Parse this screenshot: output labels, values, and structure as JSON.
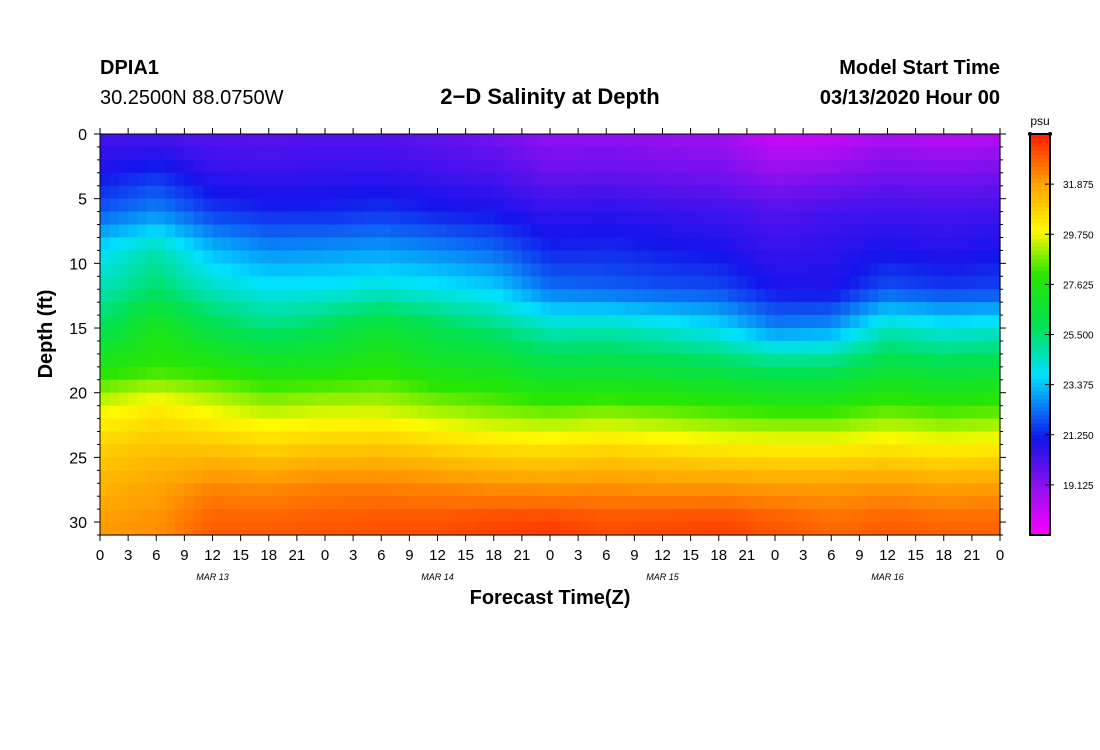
{
  "header": {
    "station": "DPIA1",
    "coords": "30.2500N 88.0750W",
    "title": "2−D Salinity at Depth",
    "start_label": "Model Start Time",
    "start_value": "03/13/2020 Hour 00"
  },
  "chart_data": {
    "type": "heatmap",
    "title": "2−D Salinity at Depth",
    "xlabel": "Forecast Time(Z)",
    "ylabel": "Depth (ft)",
    "xlim": [
      0,
      96
    ],
    "ylim": [
      31,
      0
    ],
    "x_tick_labels": [
      "0",
      "3",
      "6",
      "9",
      "12",
      "15",
      "18",
      "21",
      "0",
      "3",
      "6",
      "9",
      "12",
      "15",
      "18",
      "21",
      "0",
      "3",
      "6",
      "9",
      "12",
      "15",
      "18",
      "21",
      "0",
      "3",
      "6",
      "9",
      "12",
      "15",
      "18",
      "21",
      "0"
    ],
    "y_ticks": [
      0,
      5,
      10,
      15,
      20,
      25,
      30
    ],
    "date_labels": [
      {
        "label": "MAR 13",
        "hour": 12
      },
      {
        "label": "MAR 14",
        "hour": 36
      },
      {
        "label": "MAR 15",
        "hour": 60
      },
      {
        "label": "MAR 16",
        "hour": 84
      }
    ],
    "colorbar": {
      "unit": "psu",
      "min": 17.0,
      "max": 34.0,
      "ticks": [
        19.125,
        21.25,
        23.375,
        25.5,
        27.625,
        29.75,
        31.875
      ],
      "tick_labels": [
        "19.125",
        "21.250",
        "23.375",
        "25.500",
        "27.625",
        "29.750",
        "31.875"
      ]
    },
    "field": {
      "hours": [
        0,
        6,
        12,
        18,
        24,
        30,
        36,
        42,
        48,
        54,
        60,
        66,
        72,
        78,
        84,
        90,
        96
      ],
      "depths": [
        0,
        3,
        6,
        9,
        12,
        15,
        18,
        21,
        24,
        27,
        30
      ],
      "salinity": [
        [
          20.2,
          20.2,
          20.0,
          19.9,
          20.0,
          20.0,
          19.8,
          19.5,
          19.0,
          19.0,
          18.9,
          18.8,
          18.0,
          18.1,
          18.6,
          18.3,
          18.4
        ],
        [
          21.0,
          21.4,
          20.6,
          20.5,
          20.6,
          20.6,
          20.4,
          20.2,
          19.7,
          19.8,
          19.6,
          19.5,
          19.0,
          19.2,
          19.5,
          19.4,
          19.5
        ],
        [
          22.0,
          22.6,
          21.6,
          21.3,
          21.3,
          21.5,
          21.2,
          21.0,
          20.6,
          20.7,
          20.5,
          20.4,
          20.1,
          20.3,
          20.4,
          20.3,
          20.4
        ],
        [
          23.8,
          24.8,
          23.3,
          22.7,
          22.8,
          22.9,
          22.6,
          22.2,
          21.3,
          21.4,
          21.2,
          21.0,
          20.5,
          20.7,
          21.0,
          20.8,
          21.0
        ],
        [
          24.7,
          25.6,
          24.5,
          24.0,
          24.0,
          24.3,
          24.0,
          23.6,
          22.3,
          22.1,
          21.9,
          21.8,
          21.0,
          20.9,
          21.9,
          21.6,
          21.7
        ],
        [
          25.8,
          27.4,
          26.1,
          25.4,
          25.9,
          26.7,
          26.0,
          25.4,
          24.6,
          24.7,
          24.3,
          23.8,
          22.6,
          22.8,
          24.6,
          24.1,
          24.3
        ],
        [
          27.6,
          28.0,
          27.8,
          27.3,
          27.4,
          27.8,
          27.2,
          27.0,
          26.3,
          26.4,
          26.2,
          26.0,
          25.6,
          25.7,
          26.4,
          26.1,
          26.3
        ],
        [
          29.6,
          30.2,
          29.6,
          29.1,
          29.3,
          29.3,
          28.9,
          28.6,
          28.3,
          28.5,
          28.3,
          28.0,
          27.8,
          27.8,
          28.3,
          28.0,
          28.2
        ],
        [
          30.8,
          31.1,
          31.0,
          30.7,
          30.9,
          31.0,
          30.7,
          30.4,
          30.3,
          30.5,
          30.3,
          30.1,
          30.0,
          30.0,
          30.2,
          30.0,
          30.1
        ],
        [
          31.5,
          31.8,
          32.3,
          32.2,
          32.4,
          32.4,
          32.3,
          32.1,
          32.0,
          32.1,
          32.0,
          32.0,
          31.9,
          31.9,
          32.0,
          31.8,
          31.9
        ],
        [
          32.0,
          32.2,
          33.0,
          33.0,
          33.1,
          33.2,
          33.2,
          33.4,
          33.5,
          33.2,
          33.3,
          33.4,
          33.1,
          32.8,
          33.0,
          32.9,
          32.9
        ]
      ]
    }
  }
}
